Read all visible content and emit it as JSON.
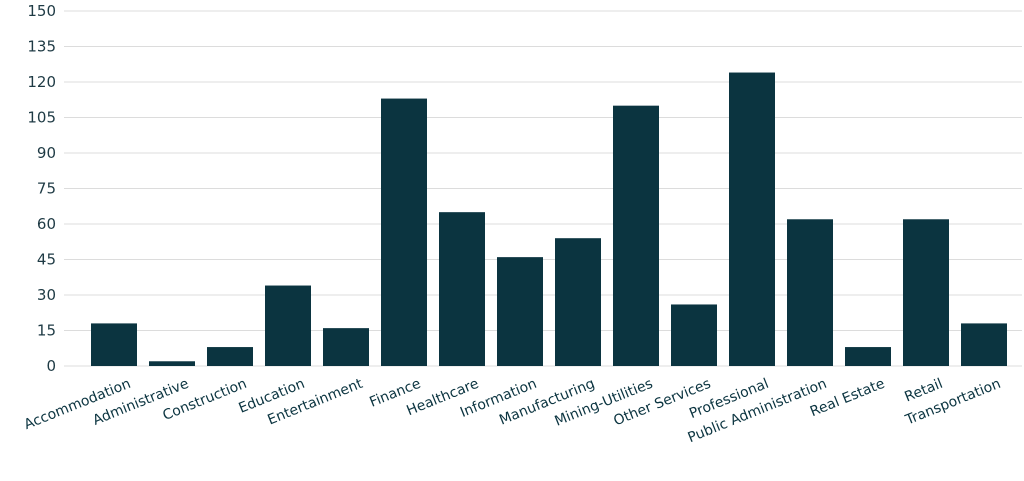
{
  "chart_data": {
    "type": "bar",
    "categories": [
      "Accommodation",
      "Administrative",
      "Construction",
      "Education",
      "Entertainment",
      "Finance",
      "Healthcare",
      "Information",
      "Manufacturing",
      "Mining-Utilities",
      "Other Services",
      "Professional",
      "Public Administration",
      "Real Estate",
      "Retail",
      "Transportation"
    ],
    "values": [
      18,
      2,
      8,
      34,
      16,
      113,
      65,
      46,
      54,
      110,
      26,
      124,
      62,
      8,
      62,
      18
    ],
    "ylim": [
      0,
      150
    ],
    "yticks": [
      0,
      15,
      30,
      45,
      60,
      75,
      90,
      105,
      120,
      135,
      150
    ],
    "grid": true,
    "bar_color": "#0b3440",
    "grid_color": "#dcdcdc",
    "title": "",
    "xlabel": "",
    "ylabel": ""
  }
}
